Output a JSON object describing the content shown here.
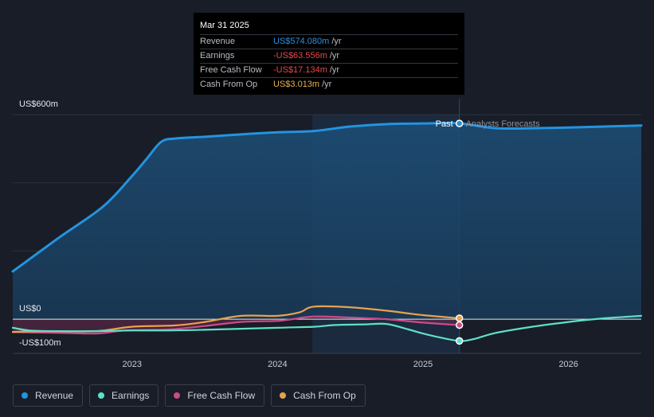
{
  "tooltip": {
    "date": "Mar 31 2025",
    "rows": [
      {
        "label": "Revenue",
        "value": "US$574.080m",
        "unit": "/yr",
        "color": "#2e8fe0"
      },
      {
        "label": "Earnings",
        "value": "-US$63.556m",
        "unit": "/yr",
        "color": "#e8474b"
      },
      {
        "label": "Free Cash Flow",
        "value": "-US$17.134m",
        "unit": "/yr",
        "color": "#e8474b"
      },
      {
        "label": "Cash From Op",
        "value": "US$3.013m",
        "unit": "/yr",
        "color": "#e8b04d"
      }
    ]
  },
  "labels": {
    "past": "Past",
    "forecast": "Analysts Forecasts"
  },
  "legend": [
    {
      "label": "Revenue",
      "color": "#2394df"
    },
    {
      "label": "Earnings",
      "color": "#5ee0c8"
    },
    {
      "label": "Free Cash Flow",
      "color": "#c94b8a"
    },
    {
      "label": "Cash From Op",
      "color": "#e8a24d"
    }
  ],
  "chart_data": {
    "type": "area",
    "y_axis_labels": [
      "US$600m",
      "US$0",
      "-US$100m"
    ],
    "ylim": [
      -100,
      600
    ],
    "x_ticks": [
      {
        "label": "2023",
        "x": 2023.0
      },
      {
        "label": "2024",
        "x": 2024.0
      },
      {
        "label": "2025",
        "x": 2025.0
      },
      {
        "label": "2026",
        "x": 2026.0
      }
    ],
    "xlim": [
      2022.18,
      2026.5
    ],
    "highlight_range": [
      2024.24,
      2025.25
    ],
    "past_end": 2025.25,
    "series": [
      {
        "name": "Revenue",
        "color": "#2394df",
        "fill": true,
        "points": [
          [
            2022.18,
            140
          ],
          [
            2022.5,
            240
          ],
          [
            2022.8,
            330
          ],
          [
            2023.0,
            420
          ],
          [
            2023.1,
            470
          ],
          [
            2023.2,
            520
          ],
          [
            2023.3,
            530
          ],
          [
            2023.5,
            535
          ],
          [
            2023.75,
            542
          ],
          [
            2024.0,
            548
          ],
          [
            2024.25,
            552
          ],
          [
            2024.5,
            565
          ],
          [
            2024.75,
            572
          ],
          [
            2025.0,
            574
          ],
          [
            2025.25,
            574.08
          ],
          [
            2025.5,
            560
          ],
          [
            2025.75,
            560
          ],
          [
            2026.0,
            562
          ],
          [
            2026.25,
            565
          ],
          [
            2026.5,
            568
          ]
        ]
      },
      {
        "name": "Earnings",
        "color": "#5ee0c8",
        "fill": false,
        "points": [
          [
            2022.18,
            -25
          ],
          [
            2022.3,
            -33
          ],
          [
            2022.5,
            -35
          ],
          [
            2022.75,
            -35
          ],
          [
            2023.0,
            -33
          ],
          [
            2023.25,
            -33
          ],
          [
            2023.5,
            -31
          ],
          [
            2023.75,
            -28
          ],
          [
            2024.0,
            -25
          ],
          [
            2024.25,
            -22
          ],
          [
            2024.4,
            -17
          ],
          [
            2024.6,
            -15
          ],
          [
            2024.75,
            -14
          ],
          [
            2024.9,
            -30
          ],
          [
            2025.0,
            -42
          ],
          [
            2025.1,
            -52
          ],
          [
            2025.25,
            -63.556
          ],
          [
            2025.35,
            -58
          ],
          [
            2025.5,
            -40
          ],
          [
            2025.75,
            -22
          ],
          [
            2026.0,
            -8
          ],
          [
            2026.25,
            3
          ],
          [
            2026.5,
            10
          ]
        ]
      },
      {
        "name": "Free Cash Flow",
        "color": "#c94b8a",
        "fill": true,
        "points": [
          [
            2022.18,
            -38
          ],
          [
            2022.5,
            -40
          ],
          [
            2022.75,
            -42
          ],
          [
            2022.9,
            -35
          ],
          [
            2023.0,
            -32
          ],
          [
            2023.25,
            -30
          ],
          [
            2023.5,
            -20
          ],
          [
            2023.75,
            -8
          ],
          [
            2024.0,
            -5
          ],
          [
            2024.1,
            0
          ],
          [
            2024.25,
            8
          ],
          [
            2024.5,
            5
          ],
          [
            2024.75,
            0
          ],
          [
            2025.0,
            -10
          ],
          [
            2025.25,
            -17.134
          ]
        ]
      },
      {
        "name": "Cash From Op",
        "color": "#e8a24d",
        "fill": false,
        "points": [
          [
            2022.18,
            -37
          ],
          [
            2022.4,
            -35
          ],
          [
            2022.75,
            -35
          ],
          [
            2023.0,
            -22
          ],
          [
            2023.3,
            -18
          ],
          [
            2023.5,
            -8
          ],
          [
            2023.75,
            10
          ],
          [
            2024.0,
            10
          ],
          [
            2024.15,
            20
          ],
          [
            2024.25,
            37
          ],
          [
            2024.5,
            35
          ],
          [
            2024.75,
            25
          ],
          [
            2025.0,
            12
          ],
          [
            2025.25,
            3.013
          ]
        ]
      }
    ]
  }
}
